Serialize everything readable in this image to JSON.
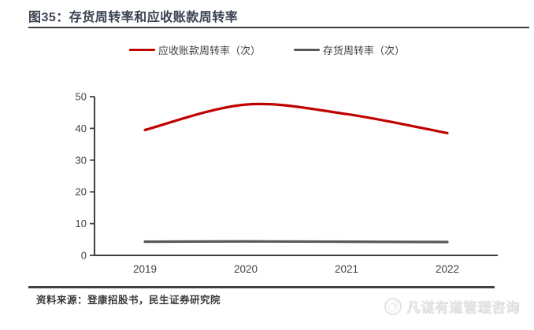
{
  "header": {
    "title": "图35：存货周转率和应收账款周转率"
  },
  "legend": {
    "items": [
      {
        "label": "应收账款周转率（次）",
        "color": "#c00000"
      },
      {
        "label": "存货周转率（次）",
        "color": "#595959"
      }
    ]
  },
  "chart_data": {
    "type": "line",
    "categories": [
      "2019",
      "2020",
      "2021",
      "2022"
    ],
    "series": [
      {
        "name": "应收账款周转率（次）",
        "color": "#c00000",
        "smooth": true,
        "values": [
          39.5,
          47.5,
          44.5,
          38.5
        ]
      },
      {
        "name": "存货周转率（次）",
        "color": "#595959",
        "smooth": false,
        "values": [
          4.3,
          4.4,
          4.3,
          4.2
        ]
      }
    ],
    "ylim": [
      0,
      50
    ],
    "yticks": [
      0,
      10,
      20,
      30,
      40,
      50
    ],
    "grid": false,
    "legend_position": "top",
    "axis_color": "#404040",
    "tick_label_color": "#404040"
  },
  "footer": {
    "source": "资料来源：登康招股书，民生证券研究院"
  },
  "watermark": {
    "text": "凡谋有道管理咨询"
  }
}
